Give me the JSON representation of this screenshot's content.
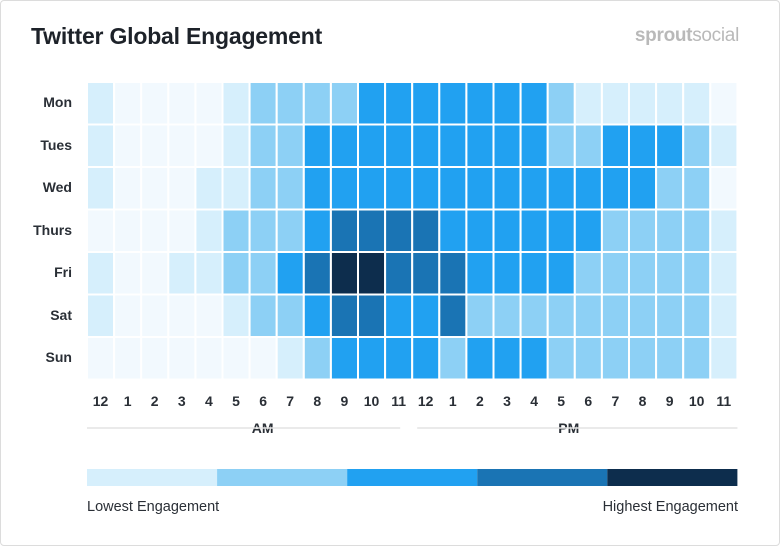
{
  "header": {
    "title": "Twitter Global Engagement",
    "brand_bold": "sprout",
    "brand_light": "social"
  },
  "chart_data": {
    "type": "heatmap",
    "title": "Twitter Global Engagement",
    "rows": [
      "Mon",
      "Tues",
      "Wed",
      "Thurs",
      "Fri",
      "Sat",
      "Sun"
    ],
    "columns": [
      "12",
      "1",
      "2",
      "3",
      "4",
      "5",
      "6",
      "7",
      "8",
      "9",
      "10",
      "11",
      "12",
      "1",
      "2",
      "3",
      "4",
      "5",
      "6",
      "7",
      "8",
      "9",
      "10",
      "11"
    ],
    "periods": [
      "AM",
      "PM"
    ],
    "scale": {
      "levels": [
        0,
        1,
        2,
        3,
        4,
        5
      ],
      "colors": [
        "#f2f9fe",
        "#d6effc",
        "#8dd0f5",
        "#21a1f1",
        "#1a74b4",
        "#0d2d4d"
      ],
      "low_label": "Lowest Engagement",
      "high_label": "Highest Engagement"
    },
    "values": [
      [
        1,
        0,
        0,
        0,
        0,
        1,
        2,
        2,
        2,
        2,
        3,
        3,
        3,
        3,
        3,
        3,
        3,
        2,
        1,
        1,
        1,
        1,
        1,
        0
      ],
      [
        1,
        0,
        0,
        0,
        0,
        1,
        2,
        2,
        3,
        3,
        3,
        3,
        3,
        3,
        3,
        3,
        3,
        2,
        2,
        3,
        3,
        3,
        2,
        1
      ],
      [
        1,
        0,
        0,
        0,
        1,
        1,
        2,
        2,
        3,
        3,
        3,
        3,
        3,
        3,
        3,
        3,
        3,
        3,
        3,
        3,
        3,
        2,
        2,
        0
      ],
      [
        0,
        0,
        0,
        0,
        1,
        2,
        2,
        2,
        3,
        4,
        4,
        4,
        4,
        3,
        3,
        3,
        3,
        3,
        3,
        2,
        2,
        2,
        2,
        1
      ],
      [
        1,
        0,
        0,
        1,
        1,
        2,
        2,
        3,
        4,
        5,
        5,
        4,
        4,
        4,
        3,
        3,
        3,
        3,
        2,
        2,
        2,
        2,
        2,
        1
      ],
      [
        1,
        0,
        0,
        0,
        0,
        1,
        2,
        2,
        3,
        4,
        4,
        3,
        3,
        4,
        2,
        2,
        2,
        2,
        2,
        2,
        2,
        2,
        2,
        1
      ],
      [
        0,
        0,
        0,
        0,
        0,
        0,
        0,
        1,
        2,
        3,
        3,
        3,
        3,
        2,
        3,
        3,
        3,
        2,
        2,
        2,
        2,
        2,
        2,
        1
      ]
    ]
  }
}
